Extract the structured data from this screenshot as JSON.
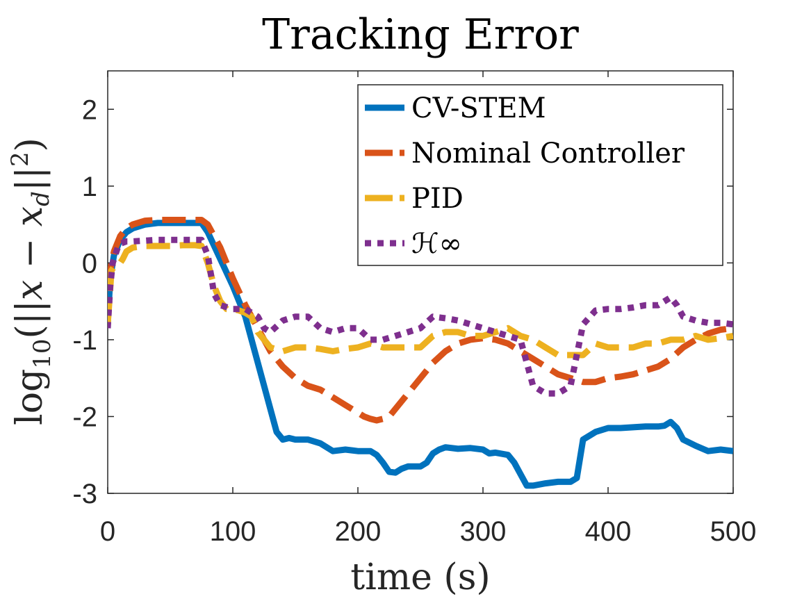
{
  "chart_data": {
    "type": "line",
    "title": "Tracking Error",
    "xlabel": "time (s)",
    "ylabel": "log10(||x − x_d||^2)",
    "ylabel_parts": {
      "log": "log",
      "sub": "10",
      "lpar": "(||",
      "x": "x",
      "minus": " − ",
      "xd": "x",
      "d": "d",
      "mid": "||",
      "sup": "2",
      "rpar": ")"
    },
    "xlim": [
      0,
      500
    ],
    "ylim": [
      -3,
      2.5
    ],
    "xticks": [
      "0",
      "100",
      "200",
      "300",
      "400",
      "500"
    ],
    "yticks": [
      "-3",
      "-2",
      "-1",
      "0",
      "1",
      "2"
    ],
    "xtick_values": [
      0,
      100,
      200,
      300,
      400,
      500
    ],
    "ytick_values": [
      -3,
      -2,
      -1,
      0,
      1,
      2
    ],
    "grid": false,
    "legend_position": "top-right",
    "series": [
      {
        "name": "CV-STEM",
        "color": "#0072BD",
        "style": "solid",
        "x": [
          0,
          2,
          5,
          10,
          15,
          20,
          30,
          40,
          50,
          60,
          70,
          75,
          80,
          90,
          100,
          110,
          120,
          130,
          135,
          140,
          145,
          150,
          160,
          170,
          180,
          190,
          200,
          210,
          215,
          220,
          225,
          230,
          235,
          240,
          250,
          255,
          260,
          265,
          270,
          280,
          290,
          300,
          305,
          310,
          320,
          325,
          330,
          335,
          340,
          350,
          360,
          370,
          375,
          380,
          385,
          390,
          400,
          410,
          420,
          430,
          440,
          445,
          450,
          455,
          460,
          470,
          480,
          490,
          500
        ],
        "y": [
          -0.8,
          -0.2,
          0.1,
          0.3,
          0.4,
          0.45,
          0.5,
          0.52,
          0.52,
          0.52,
          0.52,
          0.52,
          0.4,
          0.05,
          -0.3,
          -0.7,
          -1.3,
          -1.9,
          -2.2,
          -2.3,
          -2.28,
          -2.3,
          -2.3,
          -2.35,
          -2.45,
          -2.43,
          -2.45,
          -2.45,
          -2.5,
          -2.6,
          -2.72,
          -2.73,
          -2.68,
          -2.65,
          -2.65,
          -2.6,
          -2.48,
          -2.43,
          -2.4,
          -2.42,
          -2.41,
          -2.43,
          -2.48,
          -2.47,
          -2.5,
          -2.6,
          -2.75,
          -2.9,
          -2.9,
          -2.87,
          -2.85,
          -2.85,
          -2.8,
          -2.3,
          -2.25,
          -2.2,
          -2.15,
          -2.15,
          -2.14,
          -2.13,
          -2.13,
          -2.12,
          -2.07,
          -2.15,
          -2.3,
          -2.38,
          -2.45,
          -2.43,
          -2.45
        ]
      },
      {
        "name": "Nominal Controller",
        "color": "#D95319",
        "style": "dashed",
        "x": [
          0,
          2,
          5,
          10,
          15,
          20,
          30,
          40,
          50,
          60,
          70,
          75,
          80,
          90,
          100,
          110,
          120,
          130,
          140,
          150,
          160,
          170,
          180,
          190,
          200,
          205,
          210,
          215,
          220,
          225,
          230,
          240,
          250,
          260,
          270,
          280,
          290,
          300,
          310,
          320,
          330,
          340,
          350,
          360,
          370,
          380,
          385,
          390,
          400,
          410,
          420,
          430,
          440,
          450,
          460,
          470,
          480,
          490,
          500
        ],
        "y": [
          -0.75,
          -0.1,
          0.15,
          0.35,
          0.45,
          0.5,
          0.55,
          0.56,
          0.56,
          0.56,
          0.56,
          0.56,
          0.5,
          0.2,
          -0.2,
          -0.55,
          -0.85,
          -1.15,
          -1.35,
          -1.5,
          -1.6,
          -1.65,
          -1.75,
          -1.85,
          -1.95,
          -2.0,
          -2.03,
          -2.05,
          -2.03,
          -2.0,
          -1.9,
          -1.7,
          -1.5,
          -1.3,
          -1.15,
          -1.05,
          -1.0,
          -0.98,
          -1.0,
          -1.05,
          -1.15,
          -1.25,
          -1.35,
          -1.45,
          -1.5,
          -1.55,
          -1.55,
          -1.55,
          -1.5,
          -1.48,
          -1.45,
          -1.4,
          -1.35,
          -1.25,
          -1.1,
          -1.0,
          -0.92,
          -0.87,
          -0.85
        ]
      },
      {
        "name": "PID",
        "color": "#EDB120",
        "style": "dashed",
        "x": [
          0,
          3,
          5,
          8,
          10,
          12,
          15,
          20,
          30,
          40,
          50,
          60,
          70,
          75,
          80,
          85,
          90,
          95,
          100,
          105,
          110,
          115,
          120,
          130,
          140,
          150,
          160,
          170,
          180,
          190,
          200,
          210,
          220,
          230,
          240,
          250,
          260,
          270,
          280,
          290,
          300,
          310,
          320,
          330,
          340,
          350,
          360,
          370,
          380,
          390,
          400,
          410,
          420,
          430,
          440,
          450,
          460,
          470,
          480,
          490,
          500
        ],
        "y": [
          -0.8,
          -0.1,
          -0.05,
          -0.02,
          0.0,
          0.05,
          0.15,
          0.2,
          0.22,
          0.22,
          0.22,
          0.23,
          0.23,
          0.22,
          0.0,
          -0.3,
          -0.5,
          -0.6,
          -0.6,
          -0.62,
          -0.65,
          -0.7,
          -0.9,
          -1.1,
          -1.15,
          -1.1,
          -1.1,
          -1.12,
          -1.15,
          -1.12,
          -1.1,
          -1.05,
          -1.1,
          -1.1,
          -1.1,
          -1.1,
          -0.95,
          -0.9,
          -0.9,
          -0.95,
          -0.95,
          -0.9,
          -0.85,
          -0.95,
          -1.0,
          -1.1,
          -1.2,
          -1.2,
          -1.2,
          -1.05,
          -1.1,
          -1.1,
          -1.1,
          -1.05,
          -1.05,
          -1.0,
          -1.0,
          -0.95,
          -1.0,
          -0.98,
          -0.95
        ]
      },
      {
        "name": "ℋ∞",
        "color": "#7E2F8E",
        "style": "dotted",
        "x": [
          0,
          2,
          4,
          6,
          8,
          10,
          15,
          20,
          30,
          40,
          50,
          60,
          70,
          75,
          80,
          85,
          90,
          100,
          110,
          115,
          120,
          125,
          130,
          140,
          150,
          160,
          170,
          180,
          190,
          200,
          210,
          220,
          230,
          240,
          250,
          260,
          270,
          280,
          290,
          300,
          310,
          320,
          330,
          335,
          340,
          350,
          360,
          370,
          375,
          380,
          390,
          400,
          410,
          420,
          430,
          440,
          450,
          455,
          460,
          470,
          480,
          490,
          500
        ],
        "y": [
          -0.85,
          -0.3,
          0.0,
          0.1,
          0.2,
          0.25,
          0.28,
          0.28,
          0.29,
          0.3,
          0.3,
          0.3,
          0.3,
          0.3,
          0.1,
          -0.4,
          -0.55,
          -0.6,
          -0.6,
          -0.65,
          -0.7,
          -0.85,
          -0.9,
          -0.75,
          -0.7,
          -0.7,
          -0.85,
          -0.9,
          -0.85,
          -0.85,
          -1.0,
          -1.0,
          -0.95,
          -0.9,
          -0.85,
          -0.7,
          -0.72,
          -0.75,
          -0.8,
          -0.85,
          -0.9,
          -0.95,
          -1.0,
          -1.3,
          -1.6,
          -1.7,
          -1.7,
          -1.6,
          -1.2,
          -0.8,
          -0.62,
          -0.6,
          -0.6,
          -0.58,
          -0.55,
          -0.55,
          -0.45,
          -0.55,
          -0.7,
          -0.75,
          -0.78,
          -0.78,
          -0.8
        ]
      }
    ]
  }
}
